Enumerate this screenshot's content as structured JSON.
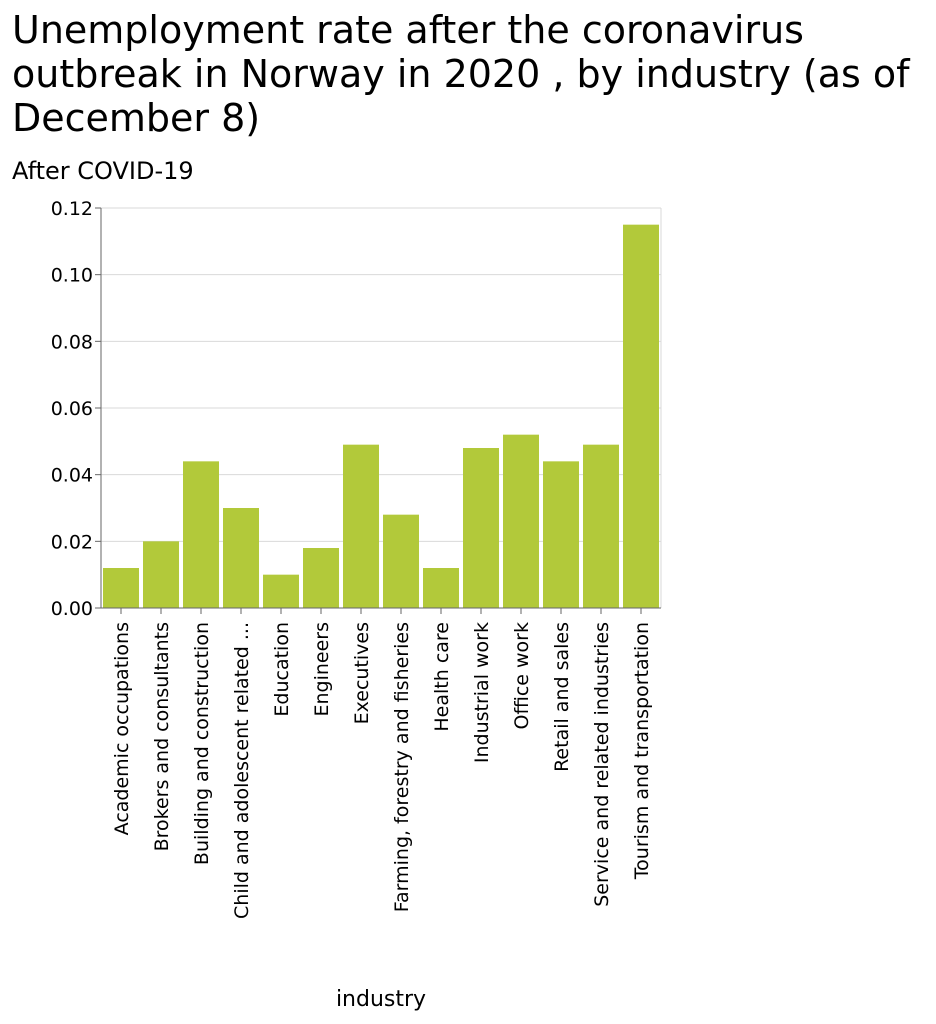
{
  "chart_data": {
    "type": "bar",
    "title": "Unemployment rate after the coronavirus outbreak in Norway in 2020 , by industry (as of December 8)",
    "subtitle": "After COVID-19",
    "xlabel": "industry",
    "ylabel": "",
    "ylim": [
      0,
      0.12
    ],
    "yticks": [
      "0.00",
      "0.02",
      "0.04",
      "0.06",
      "0.08",
      "0.10",
      "0.12"
    ],
    "grid": true,
    "bar_color": "#b2c93a",
    "categories": [
      "Academic occupations",
      "Brokers and consultants",
      "Building and construction",
      "Child and adolescent related ...",
      "Education",
      "Engineers",
      "Executives",
      "Farming, forestry and fisheries",
      "Health care",
      "Industrial work",
      "Office work",
      "Retail and sales",
      "Service and related industries",
      "Tourism and transportation"
    ],
    "values": [
      0.012,
      0.02,
      0.044,
      0.03,
      0.01,
      0.018,
      0.049,
      0.028,
      0.012,
      0.048,
      0.052,
      0.044,
      0.049,
      0.115
    ]
  }
}
